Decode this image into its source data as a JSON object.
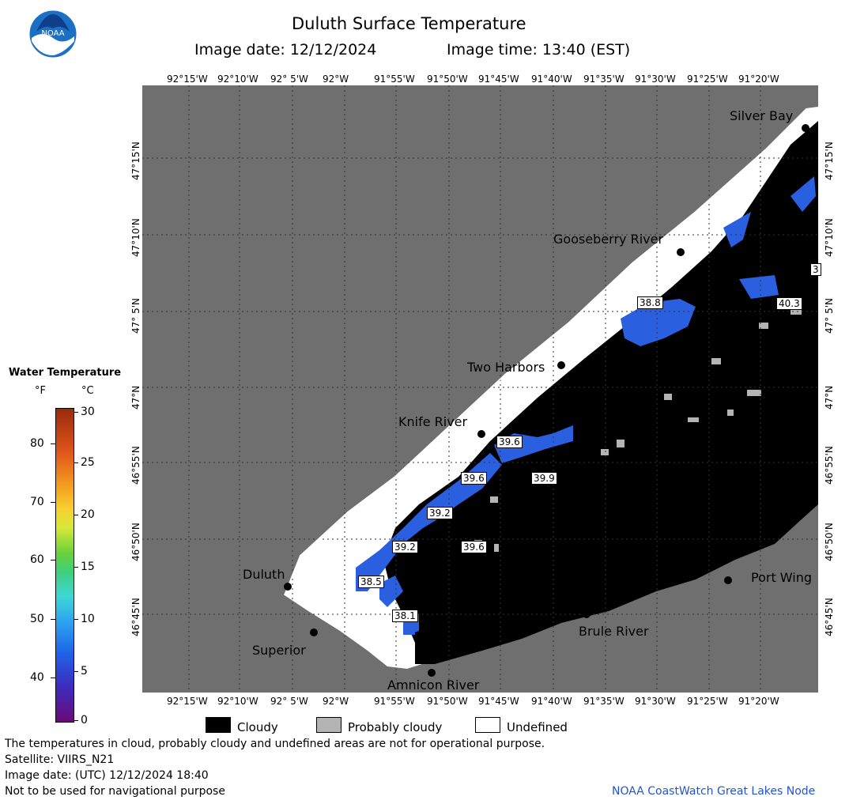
{
  "header": {
    "title": "Duluth Surface Temperature",
    "image_date_label": "Image date: 12/12/2024",
    "image_time_label": "Image time: 13:40 (EST)",
    "logo_text": "NOAA"
  },
  "map": {
    "longitude_labels": [
      "92°15'W",
      "92°10'W",
      "92° 5'W",
      "92°W",
      "91°55'W",
      "91°50'W",
      "91°45'W",
      "91°40'W",
      "91°35'W",
      "91°30'W",
      "91°25'W",
      "91°20'W"
    ],
    "latitude_labels": [
      "47°15'N",
      "47°10'N",
      "47° 5'N",
      "47°N",
      "46°55'N",
      "46°50'N",
      "46°45'N"
    ],
    "places": {
      "silver_bay": "Silver Bay",
      "gooseberry_river": "Gooseberry River",
      "two_harbors": "Two Harbors",
      "knife_river": "Knife River",
      "duluth": "Duluth",
      "superior": "Superior",
      "amnicon_river": "Amnicon River",
      "brule_river": "Brule River",
      "port_wing": "Port Wing"
    },
    "temperature_labels": {
      "t1": "38.8",
      "t2": "40.3",
      "t3": "3",
      "t4": "39.6",
      "t5": "39.6",
      "t6": "39.9",
      "t7": "39.2",
      "t8": "39.2",
      "t9": "39.6",
      "t10": "38.5",
      "t11": "38.1"
    },
    "colors": {
      "land": "#6f6f6f",
      "cloudy": "#000000",
      "probably_cloudy": "#b4b4b4",
      "undefined": "#ffffff",
      "water_cold": "#2a5fe0"
    }
  },
  "colorbar": {
    "title": "Water Temperature",
    "unit_f": "°F",
    "unit_c": "°C",
    "f_ticks": [
      "80",
      "70",
      "60",
      "50",
      "40"
    ],
    "c_ticks": [
      "30",
      "25",
      "20",
      "15",
      "10",
      "5",
      "0"
    ],
    "range_c": [
      0,
      30
    ]
  },
  "legend": {
    "cloudy": "Cloudy",
    "probably_cloudy": "Probably cloudy",
    "undefined": "Undefined"
  },
  "footer": {
    "note": "The temperatures in cloud, probably cloudy and undefined areas are not for operational purpose.",
    "satellite": "Satellite: VIIRS_N21",
    "image_date_utc": "Image date: (UTC) 12/12/2024  18:40",
    "nav_warning": "Not to be used for navigational purpose",
    "credit": "NOAA CoastWatch Great Lakes Node"
  }
}
